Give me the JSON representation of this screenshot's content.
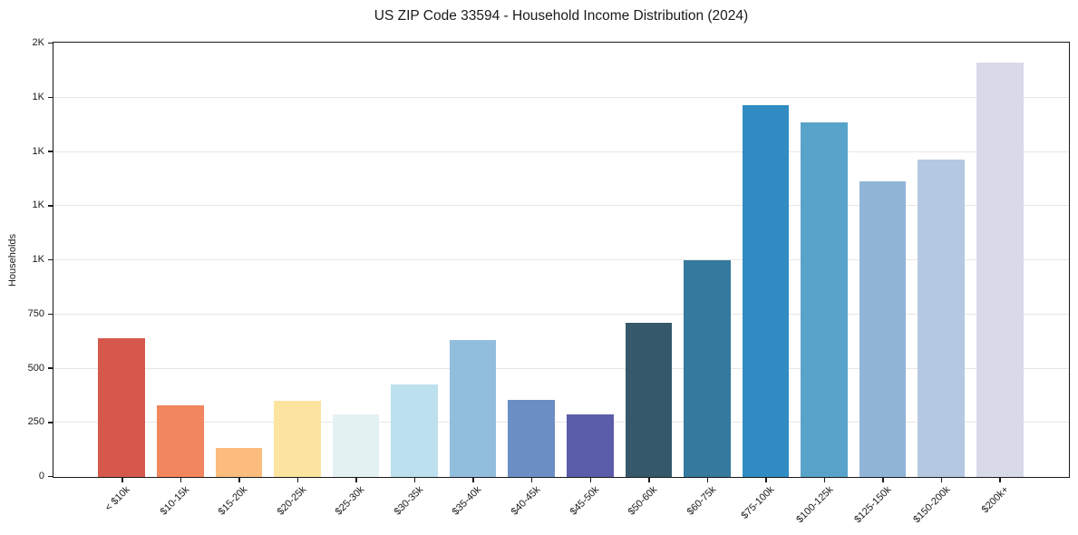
{
  "chart_data": {
    "type": "bar",
    "title": "US ZIP Code 33594 - Household Income Distribution (2024)",
    "xlabel": "",
    "ylabel": "Households",
    "categories": [
      "< $10k",
      "$10-15k",
      "$15-20k",
      "$20-25k",
      "$25-30k",
      "$30-35k",
      "$35-40k",
      "$40-45k",
      "$45-50k",
      "$50-60k",
      "$60-75k",
      "$75-100k",
      "$100-125k",
      "$125-150k",
      "$150-200k",
      "$200k+"
    ],
    "values": [
      640,
      330,
      135,
      352,
      290,
      426,
      633,
      356,
      290,
      713,
      998,
      1716,
      1637,
      1364,
      1463,
      1912
    ],
    "bar_colors": [
      "#d6584c",
      "#f2865e",
      "#fbbc7d",
      "#fce4a0",
      "#e4f1f3",
      "#bce0ee",
      "#92bedd",
      "#6b8fc4",
      "#5b5caa",
      "#35596b",
      "#35799e",
      "#308cc2",
      "#58a3ca",
      "#90b5d7",
      "#b5c8e1",
      "#d8dae8"
    ],
    "ylim": [
      0,
      2000
    ],
    "yticks": [
      {
        "value": 0,
        "label": "0"
      },
      {
        "value": 250,
        "label": "250"
      },
      {
        "value": 500,
        "label": "500"
      },
      {
        "value": 750,
        "label": "750"
      },
      {
        "value": 1000,
        "label": "1K"
      },
      {
        "value": 1250,
        "label": "1K"
      },
      {
        "value": 1500,
        "label": "1K"
      },
      {
        "value": 1750,
        "label": "1K"
      },
      {
        "value": 2000,
        "label": "2K"
      }
    ],
    "grid": "horizontal",
    "legend": "none",
    "style": {
      "grid_color": "#e6e6e6",
      "spine_color": "#1a1a1a",
      "text_color": "#1a1a1a"
    }
  }
}
